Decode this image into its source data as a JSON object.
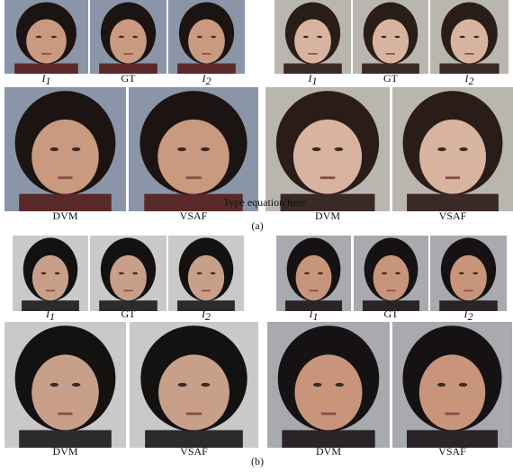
{
  "panels": [
    {
      "label": "(a)",
      "annotation": "Type equation here",
      "groups": [
        {
          "inputs": [
            {
              "symbol": "I",
              "subscript": "1"
            },
            {
              "symbol": "GT"
            },
            {
              "symbol": "I",
              "subscript": "2"
            }
          ],
          "results": [
            "DVM",
            "VSAF"
          ]
        },
        {
          "inputs": [
            {
              "symbol": "I",
              "subscript": "1"
            },
            {
              "symbol": "GT"
            },
            {
              "symbol": "I",
              "subscript": "2"
            }
          ],
          "results": [
            "DVM",
            "VSAF"
          ]
        }
      ]
    },
    {
      "label": "(b)",
      "groups": [
        {
          "inputs": [
            {
              "symbol": "I",
              "subscript": "1"
            },
            {
              "symbol": "GT"
            },
            {
              "symbol": "I",
              "subscript": "2"
            }
          ],
          "results": [
            "DVM",
            "VSAF"
          ]
        },
        {
          "inputs": [
            {
              "symbol": "I",
              "subscript": "1"
            },
            {
              "symbol": "GT"
            },
            {
              "symbol": "I",
              "subscript": "2"
            }
          ],
          "results": [
            "DVM",
            "VSAF"
          ]
        }
      ]
    }
  ]
}
